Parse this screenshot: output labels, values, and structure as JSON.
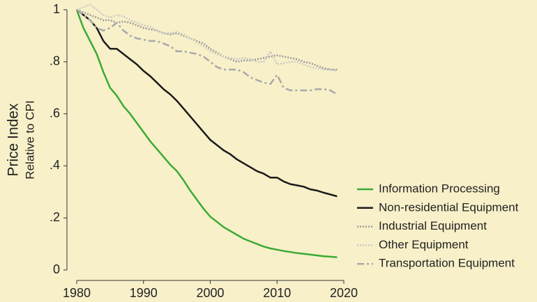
{
  "chart_data": {
    "type": "line",
    "y_label": "Price Index",
    "y_sublabel": "Relative to CPI",
    "x": [
      1980,
      1981,
      1982,
      1983,
      1984,
      1985,
      1986,
      1987,
      1988,
      1989,
      1990,
      1991,
      1992,
      1993,
      1994,
      1995,
      1996,
      1997,
      1998,
      1999,
      2000,
      2001,
      2002,
      2003,
      2004,
      2005,
      2006,
      2007,
      2008,
      2009,
      2010,
      2011,
      2012,
      2013,
      2014,
      2015,
      2016,
      2017,
      2018,
      2019
    ],
    "xlim": [
      1980,
      2020
    ],
    "xticks": [
      1980,
      1990,
      2000,
      2010,
      2020
    ],
    "ylim": [
      0,
      1
    ],
    "yticks": [
      0,
      {
        "value": 0.2,
        "label": ".2"
      },
      {
        "value": 0.4,
        "label": ".4"
      },
      {
        "value": 0.6,
        "label": ".6"
      },
      {
        "value": 0.8,
        "label": ".8"
      },
      1
    ],
    "series": [
      {
        "name": "Information Processing",
        "color": "#3aaa35",
        "style": "solid",
        "values": [
          1.0,
          0.93,
          0.88,
          0.83,
          0.76,
          0.7,
          0.67,
          0.63,
          0.6,
          0.565,
          0.53,
          0.495,
          0.465,
          0.435,
          0.405,
          0.38,
          0.345,
          0.305,
          0.27,
          0.235,
          0.205,
          0.185,
          0.165,
          0.15,
          0.135,
          0.12,
          0.11,
          0.1,
          0.09,
          0.083,
          0.078,
          0.073,
          0.069,
          0.065,
          0.062,
          0.059,
          0.056,
          0.053,
          0.051,
          0.049
        ]
      },
      {
        "name": "Non-residential Equipment",
        "color": "#1a1a1a",
        "style": "solid",
        "values": [
          1.0,
          0.98,
          0.96,
          0.93,
          0.88,
          0.85,
          0.85,
          0.83,
          0.81,
          0.79,
          0.765,
          0.745,
          0.72,
          0.695,
          0.675,
          0.65,
          0.62,
          0.59,
          0.56,
          0.53,
          0.5,
          0.48,
          0.46,
          0.445,
          0.425,
          0.41,
          0.395,
          0.38,
          0.37,
          0.355,
          0.355,
          0.34,
          0.33,
          0.325,
          0.32,
          0.31,
          0.305,
          0.297,
          0.29,
          0.283
        ]
      },
      {
        "name": "Industrial Equipment",
        "color": "#9a9a9a",
        "style": "dotted",
        "values": [
          1.0,
          0.99,
          0.98,
          0.97,
          0.96,
          0.96,
          0.95,
          0.955,
          0.95,
          0.94,
          0.93,
          0.925,
          0.92,
          0.91,
          0.905,
          0.91,
          0.9,
          0.89,
          0.88,
          0.87,
          0.85,
          0.835,
          0.82,
          0.81,
          0.8,
          0.805,
          0.805,
          0.81,
          0.815,
          0.82,
          0.825,
          0.82,
          0.815,
          0.81,
          0.8,
          0.795,
          0.785,
          0.775,
          0.77,
          0.77
        ]
      },
      {
        "name": "Other Equipment",
        "color": "#c9c9c4",
        "style": "dotted",
        "values": [
          1.0,
          1.01,
          1.02,
          1.0,
          0.98,
          0.97,
          0.98,
          0.975,
          0.96,
          0.95,
          0.94,
          0.935,
          0.92,
          0.91,
          0.91,
          0.915,
          0.905,
          0.89,
          0.875,
          0.86,
          0.84,
          0.83,
          0.82,
          0.815,
          0.81,
          0.815,
          0.81,
          0.8,
          0.8,
          0.84,
          0.79,
          0.795,
          0.8,
          0.8,
          0.79,
          0.78,
          0.775,
          0.77,
          0.77,
          0.765
        ]
      },
      {
        "name": "Transportation Equipment",
        "color": "#a8a8a8",
        "style": "dashed",
        "values": [
          1.0,
          0.98,
          0.96,
          0.93,
          0.92,
          0.93,
          0.95,
          0.92,
          0.9,
          0.89,
          0.885,
          0.88,
          0.88,
          0.87,
          0.86,
          0.84,
          0.84,
          0.835,
          0.83,
          0.82,
          0.8,
          0.78,
          0.77,
          0.77,
          0.77,
          0.76,
          0.74,
          0.73,
          0.72,
          0.715,
          0.75,
          0.7,
          0.69,
          0.69,
          0.69,
          0.69,
          0.695,
          0.695,
          0.69,
          0.675
        ]
      }
    ]
  }
}
